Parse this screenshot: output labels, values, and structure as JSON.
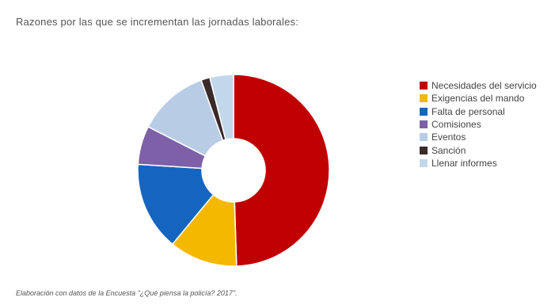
{
  "title": "Razones por las que se incrementan las jornadas laborales:",
  "source": "Elaboración con datos de la Encuesta \"¿Qué piensa la policía? 2017\".",
  "chart_data": {
    "type": "pie",
    "donut": true,
    "legend_position": "right",
    "categories": [
      "Necesidades del servicio",
      "Exigencias del mando",
      "Falta de personal",
      "Comisiones",
      "Eventos",
      "Sanción",
      "Llenar informes"
    ],
    "values": [
      49.5,
      11.5,
      15,
      6.5,
      12,
      1.5,
      4
    ],
    "colors": [
      "#c00000",
      "#f5b800",
      "#1565c0",
      "#7e60a8",
      "#b9cce6",
      "#3a2a2a",
      "#c3d7ea"
    ]
  }
}
